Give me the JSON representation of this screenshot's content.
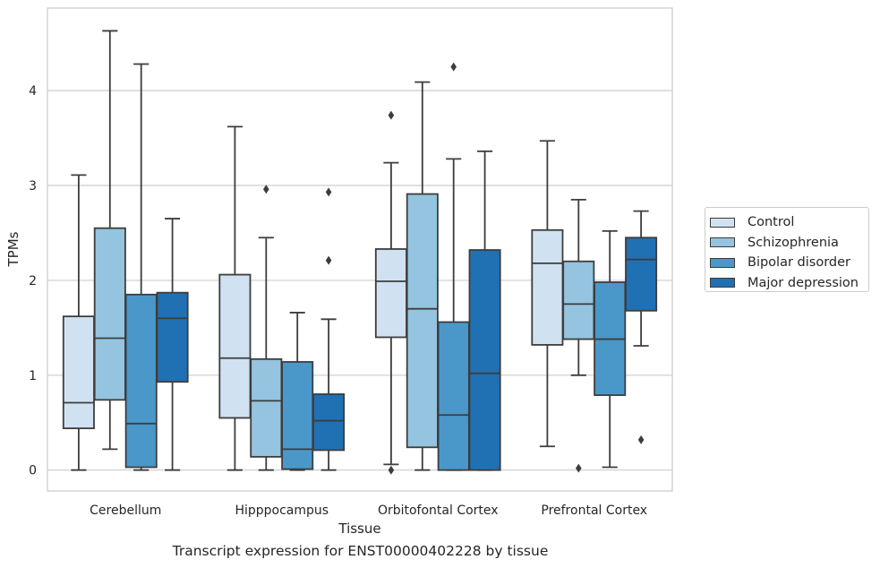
{
  "chart_data": {
    "type": "box",
    "title": "",
    "caption": "Transcript expression for ENST00000402228 by tissue",
    "xlabel": "Tissue",
    "ylabel": "TPMs",
    "ylim": [
      -0.22,
      4.87
    ],
    "yticks": [
      0,
      1,
      2,
      3,
      4
    ],
    "grid": "horizontal",
    "legend_position": "right",
    "categories": [
      "Cerebellum",
      "Hipppocampus",
      "Orbitofontal Cortex",
      "Prefrontal Cortex"
    ],
    "series": [
      {
        "name": "Control",
        "color": "#d0e1f2",
        "boxes": [
          {
            "whislo": 0.0,
            "q1": 0.44,
            "med": 0.71,
            "q3": 1.62,
            "whishi": 3.11,
            "fliers": []
          },
          {
            "whislo": 0.0,
            "q1": 0.55,
            "med": 1.18,
            "q3": 2.06,
            "whishi": 3.62,
            "fliers": []
          },
          {
            "whislo": 0.06,
            "q1": 1.4,
            "med": 1.99,
            "q3": 2.33,
            "whishi": 3.24,
            "fliers": [
              3.74,
              0.0
            ]
          },
          {
            "whislo": 0.25,
            "q1": 1.32,
            "med": 2.18,
            "q3": 2.53,
            "whishi": 3.47,
            "fliers": []
          }
        ]
      },
      {
        "name": "Schizophrenia",
        "color": "#94c4df",
        "boxes": [
          {
            "whislo": 0.22,
            "q1": 0.74,
            "med": 1.39,
            "q3": 2.55,
            "whishi": 4.63,
            "fliers": []
          },
          {
            "whislo": 0.0,
            "q1": 0.14,
            "med": 0.73,
            "q3": 1.17,
            "whishi": 2.45,
            "fliers": [
              2.96
            ]
          },
          {
            "whislo": 0.0,
            "q1": 0.24,
            "med": 1.7,
            "q3": 2.91,
            "whishi": 4.09,
            "fliers": []
          },
          {
            "whislo": 1.0,
            "q1": 1.38,
            "med": 1.75,
            "q3": 2.2,
            "whishi": 2.85,
            "fliers": [
              0.02
            ]
          }
        ]
      },
      {
        "name": "Bipolar disorder",
        "color": "#4a98c9",
        "boxes": [
          {
            "whislo": 0.0,
            "q1": 0.03,
            "med": 0.49,
            "q3": 1.85,
            "whishi": 4.28,
            "fliers": []
          },
          {
            "whislo": 0.0,
            "q1": 0.01,
            "med": 0.22,
            "q3": 1.14,
            "whishi": 1.66,
            "fliers": []
          },
          {
            "whislo": 0.0,
            "q1": 0.0,
            "med": 0.58,
            "q3": 1.56,
            "whishi": 3.28,
            "fliers": [
              4.25
            ]
          },
          {
            "whislo": 0.03,
            "q1": 0.79,
            "med": 1.38,
            "q3": 1.98,
            "whishi": 2.52,
            "fliers": []
          }
        ]
      },
      {
        "name": "Major depression",
        "color": "#2070b4",
        "boxes": [
          {
            "whislo": 0.0,
            "q1": 0.93,
            "med": 1.6,
            "q3": 1.87,
            "whishi": 2.65,
            "fliers": []
          },
          {
            "whislo": 0.0,
            "q1": 0.21,
            "med": 0.52,
            "q3": 0.8,
            "whishi": 1.59,
            "fliers": [
              2.93,
              2.21
            ]
          },
          {
            "whislo": 0.0,
            "q1": 0.0,
            "med": 1.02,
            "q3": 2.32,
            "whishi": 3.36,
            "fliers": []
          },
          {
            "whislo": 1.31,
            "q1": 1.68,
            "med": 2.22,
            "q3": 2.45,
            "whishi": 2.73,
            "fliers": [
              0.32
            ]
          }
        ]
      }
    ]
  }
}
